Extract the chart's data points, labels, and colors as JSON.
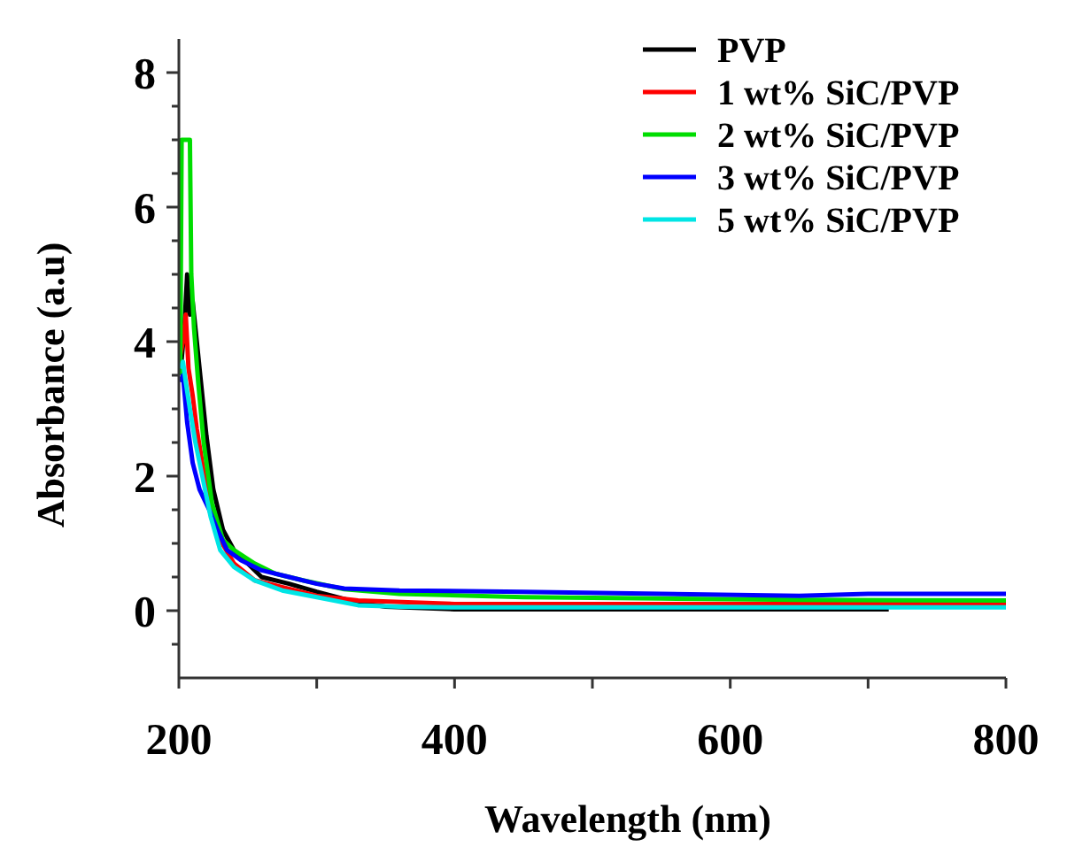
{
  "chart_data": {
    "type": "line",
    "xlabel": "Wavelength (nm)",
    "ylabel": "Absorbance (a.u)",
    "xlim": [
      200,
      800
    ],
    "xticks": [
      200,
      {
        "value": 300,
        "label": null
      },
      400,
      {
        "value": 500,
        "label": null
      },
      600,
      {
        "value": 700,
        "label": null
      },
      800
    ],
    "ylim": [
      -1,
      8.5
    ],
    "yticks": [
      {
        "value": -0.5,
        "label": null
      },
      0,
      {
        "value": 0.5,
        "label": null
      },
      {
        "value": 1,
        "label": null
      },
      {
        "value": 1.5,
        "label": null
      },
      2,
      {
        "value": 2.5,
        "label": null
      },
      {
        "value": 3,
        "label": null
      },
      {
        "value": 3.5,
        "label": null
      },
      4,
      {
        "value": 4.5,
        "label": null
      },
      {
        "value": 5,
        "label": null
      },
      {
        "value": 5.5,
        "label": null
      },
      6,
      {
        "value": 6.5,
        "label": null
      },
      {
        "value": 7,
        "label": null
      },
      {
        "value": 7.5,
        "label": null
      },
      8
    ],
    "grid": false,
    "legend": "top right",
    "line_style": "solid",
    "series": [
      {
        "name": "PVP",
        "color": "#000000",
        "x": [
          201,
          204,
          206,
          208,
          210,
          213,
          216,
          220,
          225,
          232,
          240,
          250,
          260,
          280,
          300,
          330,
          350,
          400,
          500,
          600,
          715
        ],
        "values": [
          3.5,
          4.2,
          5.0,
          4.4,
          4.6,
          4.0,
          3.4,
          2.6,
          1.8,
          1.2,
          0.9,
          0.7,
          0.5,
          0.4,
          0.28,
          0.12,
          0.06,
          0.02,
          0.02,
          0.02,
          0.02
        ]
      },
      {
        "name": "1 wt% SiC/PVP",
        "color": "#ff0000",
        "x": [
          201,
          203,
          205,
          207,
          210,
          213,
          217,
          222,
          230,
          240,
          255,
          275,
          300,
          330,
          400,
          500,
          600,
          700,
          800
        ],
        "values": [
          3.8,
          4.0,
          4.4,
          3.6,
          3.2,
          2.7,
          2.2,
          1.6,
          1.05,
          0.7,
          0.45,
          0.35,
          0.22,
          0.15,
          0.1,
          0.1,
          0.1,
          0.1,
          0.1
        ]
      },
      {
        "name": "2 wt% SiC/PVP",
        "color": "#00dd00",
        "x": [
          201,
          202,
          204,
          206,
          208,
          209,
          211,
          214,
          218,
          224,
          232,
          240,
          255,
          270,
          290,
          320,
          360,
          450,
          550,
          650,
          800
        ],
        "values": [
          3.5,
          7.0,
          7.0,
          7.0,
          7.0,
          5.0,
          4.2,
          3.4,
          2.5,
          1.6,
          1.05,
          0.9,
          0.7,
          0.55,
          0.45,
          0.32,
          0.25,
          0.2,
          0.18,
          0.16,
          0.15
        ]
      },
      {
        "name": "3 wt% SiC/PVP",
        "color": "#0000ff",
        "x": [
          201,
          203,
          206,
          210,
          215,
          222,
          228,
          235,
          245,
          260,
          280,
          300,
          320,
          360,
          450,
          550,
          650,
          700,
          800
        ],
        "values": [
          3.4,
          3.5,
          2.8,
          2.2,
          1.8,
          1.5,
          1.2,
          0.9,
          0.75,
          0.6,
          0.5,
          0.4,
          0.33,
          0.3,
          0.28,
          0.25,
          0.22,
          0.25,
          0.25
        ]
      },
      {
        "name": "5 wt% SiC/PVP",
        "color": "#00e5e5",
        "x": [
          201,
          203,
          205,
          208,
          212,
          217,
          223,
          230,
          240,
          255,
          275,
          300,
          330,
          360,
          400,
          500,
          600,
          700,
          800
        ],
        "values": [
          3.6,
          3.7,
          3.4,
          3.0,
          2.5,
          2.0,
          1.4,
          0.9,
          0.65,
          0.45,
          0.3,
          0.2,
          0.08,
          0.06,
          0.05,
          0.05,
          0.05,
          0.05,
          0.05
        ]
      }
    ]
  }
}
